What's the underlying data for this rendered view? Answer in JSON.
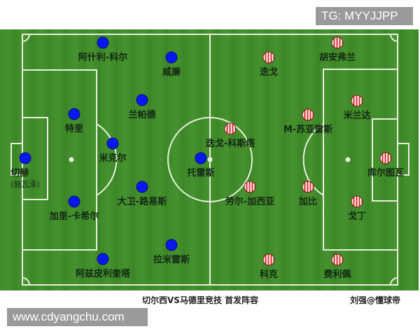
{
  "watermark_top": "TG: MYYJJPP",
  "watermark_bottom": "www.cdyangchu.com",
  "caption": "切尔西VS马德里竞技 首发阵容",
  "credit": "刘强@懂球帝",
  "colors": {
    "chelsea": "#0a18f0",
    "atletico": "#d42a2a",
    "pitch": "#3f8a2a"
  },
  "chelsea": [
    {
      "name": "阿什利-科尔"
    },
    {
      "name": "威廉"
    },
    {
      "name": "兰帕德"
    },
    {
      "name": "特里"
    },
    {
      "name": "米克尔"
    },
    {
      "name": "切赫",
      "note": "(施瓦泽)"
    },
    {
      "name": "托雷斯"
    },
    {
      "name": "大卫-路易斯"
    },
    {
      "name": "加里-卡希尔"
    },
    {
      "name": "拉米雷斯"
    },
    {
      "name": "阿兹皮利奎塔"
    }
  ],
  "atletico": [
    {
      "name": "胡安弗兰"
    },
    {
      "name": "迭戈"
    },
    {
      "name": "米兰达"
    },
    {
      "name": "M-苏亚雷斯"
    },
    {
      "name": "迭戈-科斯塔"
    },
    {
      "name": "库尔图瓦"
    },
    {
      "name": "劳尔-加西亚"
    },
    {
      "name": "加比"
    },
    {
      "name": "戈丁"
    },
    {
      "name": "科克"
    },
    {
      "name": "费利佩"
    }
  ]
}
